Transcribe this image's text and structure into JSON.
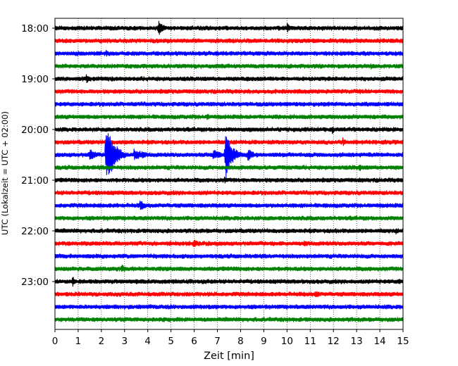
{
  "chart_data": {
    "type": "line",
    "title": "",
    "xlabel": "Zeit  [min]",
    "ylabel": "UTC (Lokalzeit = UTC + 02:00)",
    "xlim": [
      0,
      15
    ],
    "x_ticks": [
      "0",
      "1",
      "2",
      "3",
      "4",
      "5",
      "6",
      "7",
      "8",
      "9",
      "10",
      "11",
      "12",
      "13",
      "14",
      "15"
    ],
    "y_ticks": [
      {
        "label": "18:00",
        "trace": 0
      },
      {
        "label": "19:00",
        "trace": 4
      },
      {
        "label": "20:00",
        "trace": 8
      },
      {
        "label": "21:00",
        "trace": 12
      },
      {
        "label": "22:00",
        "trace": 16
      },
      {
        "label": "23:00",
        "trace": 20
      }
    ],
    "grid": "vertical dotted lines at each minute",
    "color_cycle": [
      "#000000",
      "#ff0000",
      "#0000ff",
      "#008000"
    ],
    "traces": [
      {
        "start": "18:00",
        "color": "#000000",
        "events": [
          {
            "t": 4.45,
            "amp": 12,
            "dur": 0.25
          },
          {
            "t": 10.0,
            "amp": 8,
            "dur": 0.2
          }
        ]
      },
      {
        "start": "18:15",
        "color": "#ff0000",
        "events": []
      },
      {
        "start": "18:30",
        "color": "#0000ff",
        "events": [
          {
            "t": 2.2,
            "amp": 6,
            "dur": 0.15
          }
        ]
      },
      {
        "start": "18:45",
        "color": "#008000",
        "events": [
          {
            "t": 13.6,
            "amp": 5,
            "dur": 0.3
          }
        ]
      },
      {
        "start": "19:00",
        "color": "#000000",
        "events": [
          {
            "t": 1.35,
            "amp": 7,
            "dur": 0.2
          }
        ]
      },
      {
        "start": "19:15",
        "color": "#ff0000",
        "events": []
      },
      {
        "start": "19:30",
        "color": "#0000ff",
        "events": []
      },
      {
        "start": "19:45",
        "color": "#008000",
        "events": [
          {
            "t": 6.55,
            "amp": 6,
            "dur": 0.2
          }
        ]
      },
      {
        "start": "20:00",
        "color": "#000000",
        "events": [
          {
            "t": 11.95,
            "amp": 8,
            "dur": 0.1
          }
        ]
      },
      {
        "start": "20:15",
        "color": "#ff0000",
        "events": [
          {
            "t": 12.4,
            "amp": 7,
            "dur": 0.25
          }
        ]
      },
      {
        "start": "20:30",
        "color": "#0000ff",
        "events": [
          {
            "t": 1.5,
            "amp": 10,
            "dur": 0.3
          },
          {
            "t": 2.2,
            "amp": 48,
            "dur": 0.35
          },
          {
            "t": 3.4,
            "amp": 9,
            "dur": 0.6
          },
          {
            "t": 6.8,
            "amp": 10,
            "dur": 0.4
          },
          {
            "t": 7.35,
            "amp": 36,
            "dur": 0.3
          },
          {
            "t": 8.3,
            "amp": 10,
            "dur": 0.3
          }
        ]
      },
      {
        "start": "20:45",
        "color": "#008000",
        "events": [
          {
            "t": 13.1,
            "amp": 6,
            "dur": 0.3
          }
        ]
      },
      {
        "start": "21:00",
        "color": "#000000",
        "events": [
          {
            "t": 7.3,
            "amp": 6,
            "dur": 0.2
          }
        ]
      },
      {
        "start": "21:15",
        "color": "#ff0000",
        "events": []
      },
      {
        "start": "21:30",
        "color": "#0000ff",
        "events": [
          {
            "t": 3.65,
            "amp": 9,
            "dur": 0.3
          }
        ]
      },
      {
        "start": "21:45",
        "color": "#008000",
        "events": []
      },
      {
        "start": "22:00",
        "color": "#000000",
        "events": [
          {
            "t": 14.7,
            "amp": 5,
            "dur": 0.2
          }
        ]
      },
      {
        "start": "22:15",
        "color": "#ff0000",
        "events": [
          {
            "t": 5.95,
            "amp": 7,
            "dur": 0.3
          },
          {
            "t": 10.7,
            "amp": 5,
            "dur": 0.25
          }
        ]
      },
      {
        "start": "22:30",
        "color": "#0000ff",
        "events": []
      },
      {
        "start": "22:45",
        "color": "#008000",
        "events": [
          {
            "t": 2.85,
            "amp": 7,
            "dur": 0.3
          }
        ]
      },
      {
        "start": "23:00",
        "color": "#000000",
        "events": [
          {
            "t": 0.75,
            "amp": 9,
            "dur": 0.15
          },
          {
            "t": 14.8,
            "amp": 5,
            "dur": 0.3
          }
        ]
      },
      {
        "start": "23:15",
        "color": "#ff0000",
        "events": [
          {
            "t": 11.2,
            "amp": 6,
            "dur": 0.4
          }
        ]
      },
      {
        "start": "23:30",
        "color": "#0000ff",
        "events": []
      },
      {
        "start": "23:45",
        "color": "#008000",
        "events": []
      }
    ]
  }
}
